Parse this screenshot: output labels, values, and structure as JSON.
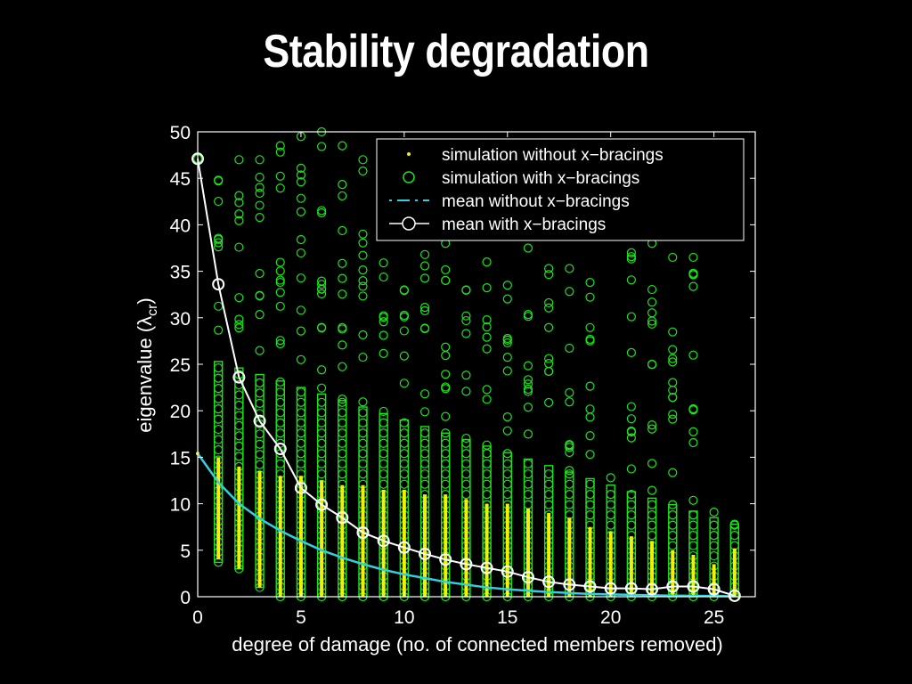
{
  "slide": {
    "title": "Stability degradation"
  },
  "chart_data": {
    "type": "scatter",
    "title": "",
    "xlabel": "degree of damage (no. of connected members removed)",
    "ylabel": "eigenvalue (λ",
    "ylabel_sub": "cr",
    "ylabel_close": ")",
    "xlim": [
      0,
      27
    ],
    "ylim": [
      0,
      50
    ],
    "x_ticks": [
      0,
      5,
      10,
      15,
      20,
      25
    ],
    "y_ticks": [
      0,
      5,
      10,
      15,
      20,
      25,
      30,
      35,
      40,
      45,
      50
    ],
    "grid": false,
    "legend_position": "top-right",
    "colors": {
      "background": "#000000",
      "axes": "#ffffff",
      "sim_without": "#f2f200",
      "sim_with": "#19e619",
      "mean_without": "#33cfdd",
      "mean_with": "#ffffff"
    },
    "legend": [
      "simulation without x−bracings",
      "simulation with x−bracings",
      "mean without x−bracings",
      "mean with x−bracings"
    ],
    "series": [
      {
        "name": "mean with x−bracings",
        "x": [
          0,
          1,
          2,
          3,
          4,
          5,
          6,
          7,
          8,
          9,
          10,
          11,
          12,
          13,
          14,
          15,
          16,
          17,
          18,
          19,
          20,
          21,
          22,
          23,
          24,
          25,
          26
        ],
        "y": [
          47.1,
          33.6,
          23.6,
          18.9,
          15.9,
          11.7,
          9.9,
          8.5,
          6.9,
          6.0,
          5.3,
          4.6,
          4.0,
          3.5,
          3.1,
          2.7,
          2.1,
          1.6,
          1.3,
          1.1,
          0.9,
          0.9,
          0.8,
          1.1,
          1.1,
          0.8,
          0.1
        ]
      },
      {
        "name": "mean without x−bracings",
        "x": [
          0,
          1,
          2,
          3,
          4,
          5,
          6,
          7,
          8,
          9,
          10,
          11,
          12,
          13,
          14,
          15,
          16,
          17,
          18,
          19,
          20,
          21,
          22,
          23,
          24,
          25,
          26
        ],
        "y": [
          15.4,
          12.3,
          10.0,
          8.4,
          7.1,
          6.0,
          5.0,
          4.2,
          3.5,
          2.9,
          2.4,
          2.0,
          1.6,
          1.3,
          1.0,
          0.8,
          0.65,
          0.5,
          0.4,
          0.3,
          0.25,
          0.2,
          0.15,
          0.12,
          0.1,
          0.08,
          0.05
        ]
      },
      {
        "name": "simulation without x−bracings",
        "x": [
          0,
          1,
          2,
          3,
          4,
          5,
          6,
          7,
          8,
          9,
          10,
          11,
          12,
          13,
          14,
          15,
          16,
          17,
          18,
          19,
          20,
          21,
          22,
          23,
          24,
          25,
          26
        ],
        "y_range": [
          [
            15.4,
            15.4
          ],
          [
            4,
            15
          ],
          [
            3,
            14
          ],
          [
            1,
            13.5
          ],
          [
            0,
            13
          ],
          [
            0,
            13
          ],
          [
            0,
            12.5
          ],
          [
            0,
            12
          ],
          [
            0,
            12
          ],
          [
            0,
            11.5
          ],
          [
            0,
            11.5
          ],
          [
            0,
            11
          ],
          [
            0,
            11
          ],
          [
            0,
            10.5
          ],
          [
            0,
            10
          ],
          [
            0,
            10
          ],
          [
            0,
            9.5
          ],
          [
            0,
            9
          ],
          [
            0,
            8.5
          ],
          [
            0,
            7.5
          ],
          [
            0,
            7
          ],
          [
            0,
            6.5
          ],
          [
            0,
            6
          ],
          [
            0,
            5
          ],
          [
            0,
            4.5
          ],
          [
            0,
            3.5
          ],
          [
            0,
            5.2
          ]
        ]
      },
      {
        "name": "simulation with x−bracings",
        "x": [
          0,
          1,
          2,
          3,
          4,
          5,
          6,
          7,
          8,
          9,
          10,
          11,
          12,
          13,
          14,
          15,
          16,
          17,
          18,
          19,
          20,
          21,
          22,
          23,
          24,
          25,
          26
        ],
        "y_range": [
          [
            47.1,
            47.1
          ],
          [
            3.7,
            44.8
          ],
          [
            3,
            47
          ],
          [
            1,
            47
          ],
          [
            0,
            48.5
          ],
          [
            0,
            49.5
          ],
          [
            0,
            50
          ],
          [
            0,
            48.5
          ],
          [
            0,
            47
          ],
          [
            0,
            35.9
          ],
          [
            0,
            33
          ],
          [
            0,
            36.8
          ],
          [
            0,
            38
          ],
          [
            0,
            33
          ],
          [
            0,
            36
          ],
          [
            0,
            33.5
          ],
          [
            0,
            37.5
          ],
          [
            0,
            35.3
          ],
          [
            0,
            35.3
          ],
          [
            0,
            33.8
          ],
          [
            0,
            12.8
          ],
          [
            0,
            37
          ],
          [
            0,
            38
          ],
          [
            0,
            36.5
          ],
          [
            0,
            36.5
          ],
          [
            0,
            9.1
          ],
          [
            0,
            7.8
          ]
        ]
      }
    ]
  }
}
